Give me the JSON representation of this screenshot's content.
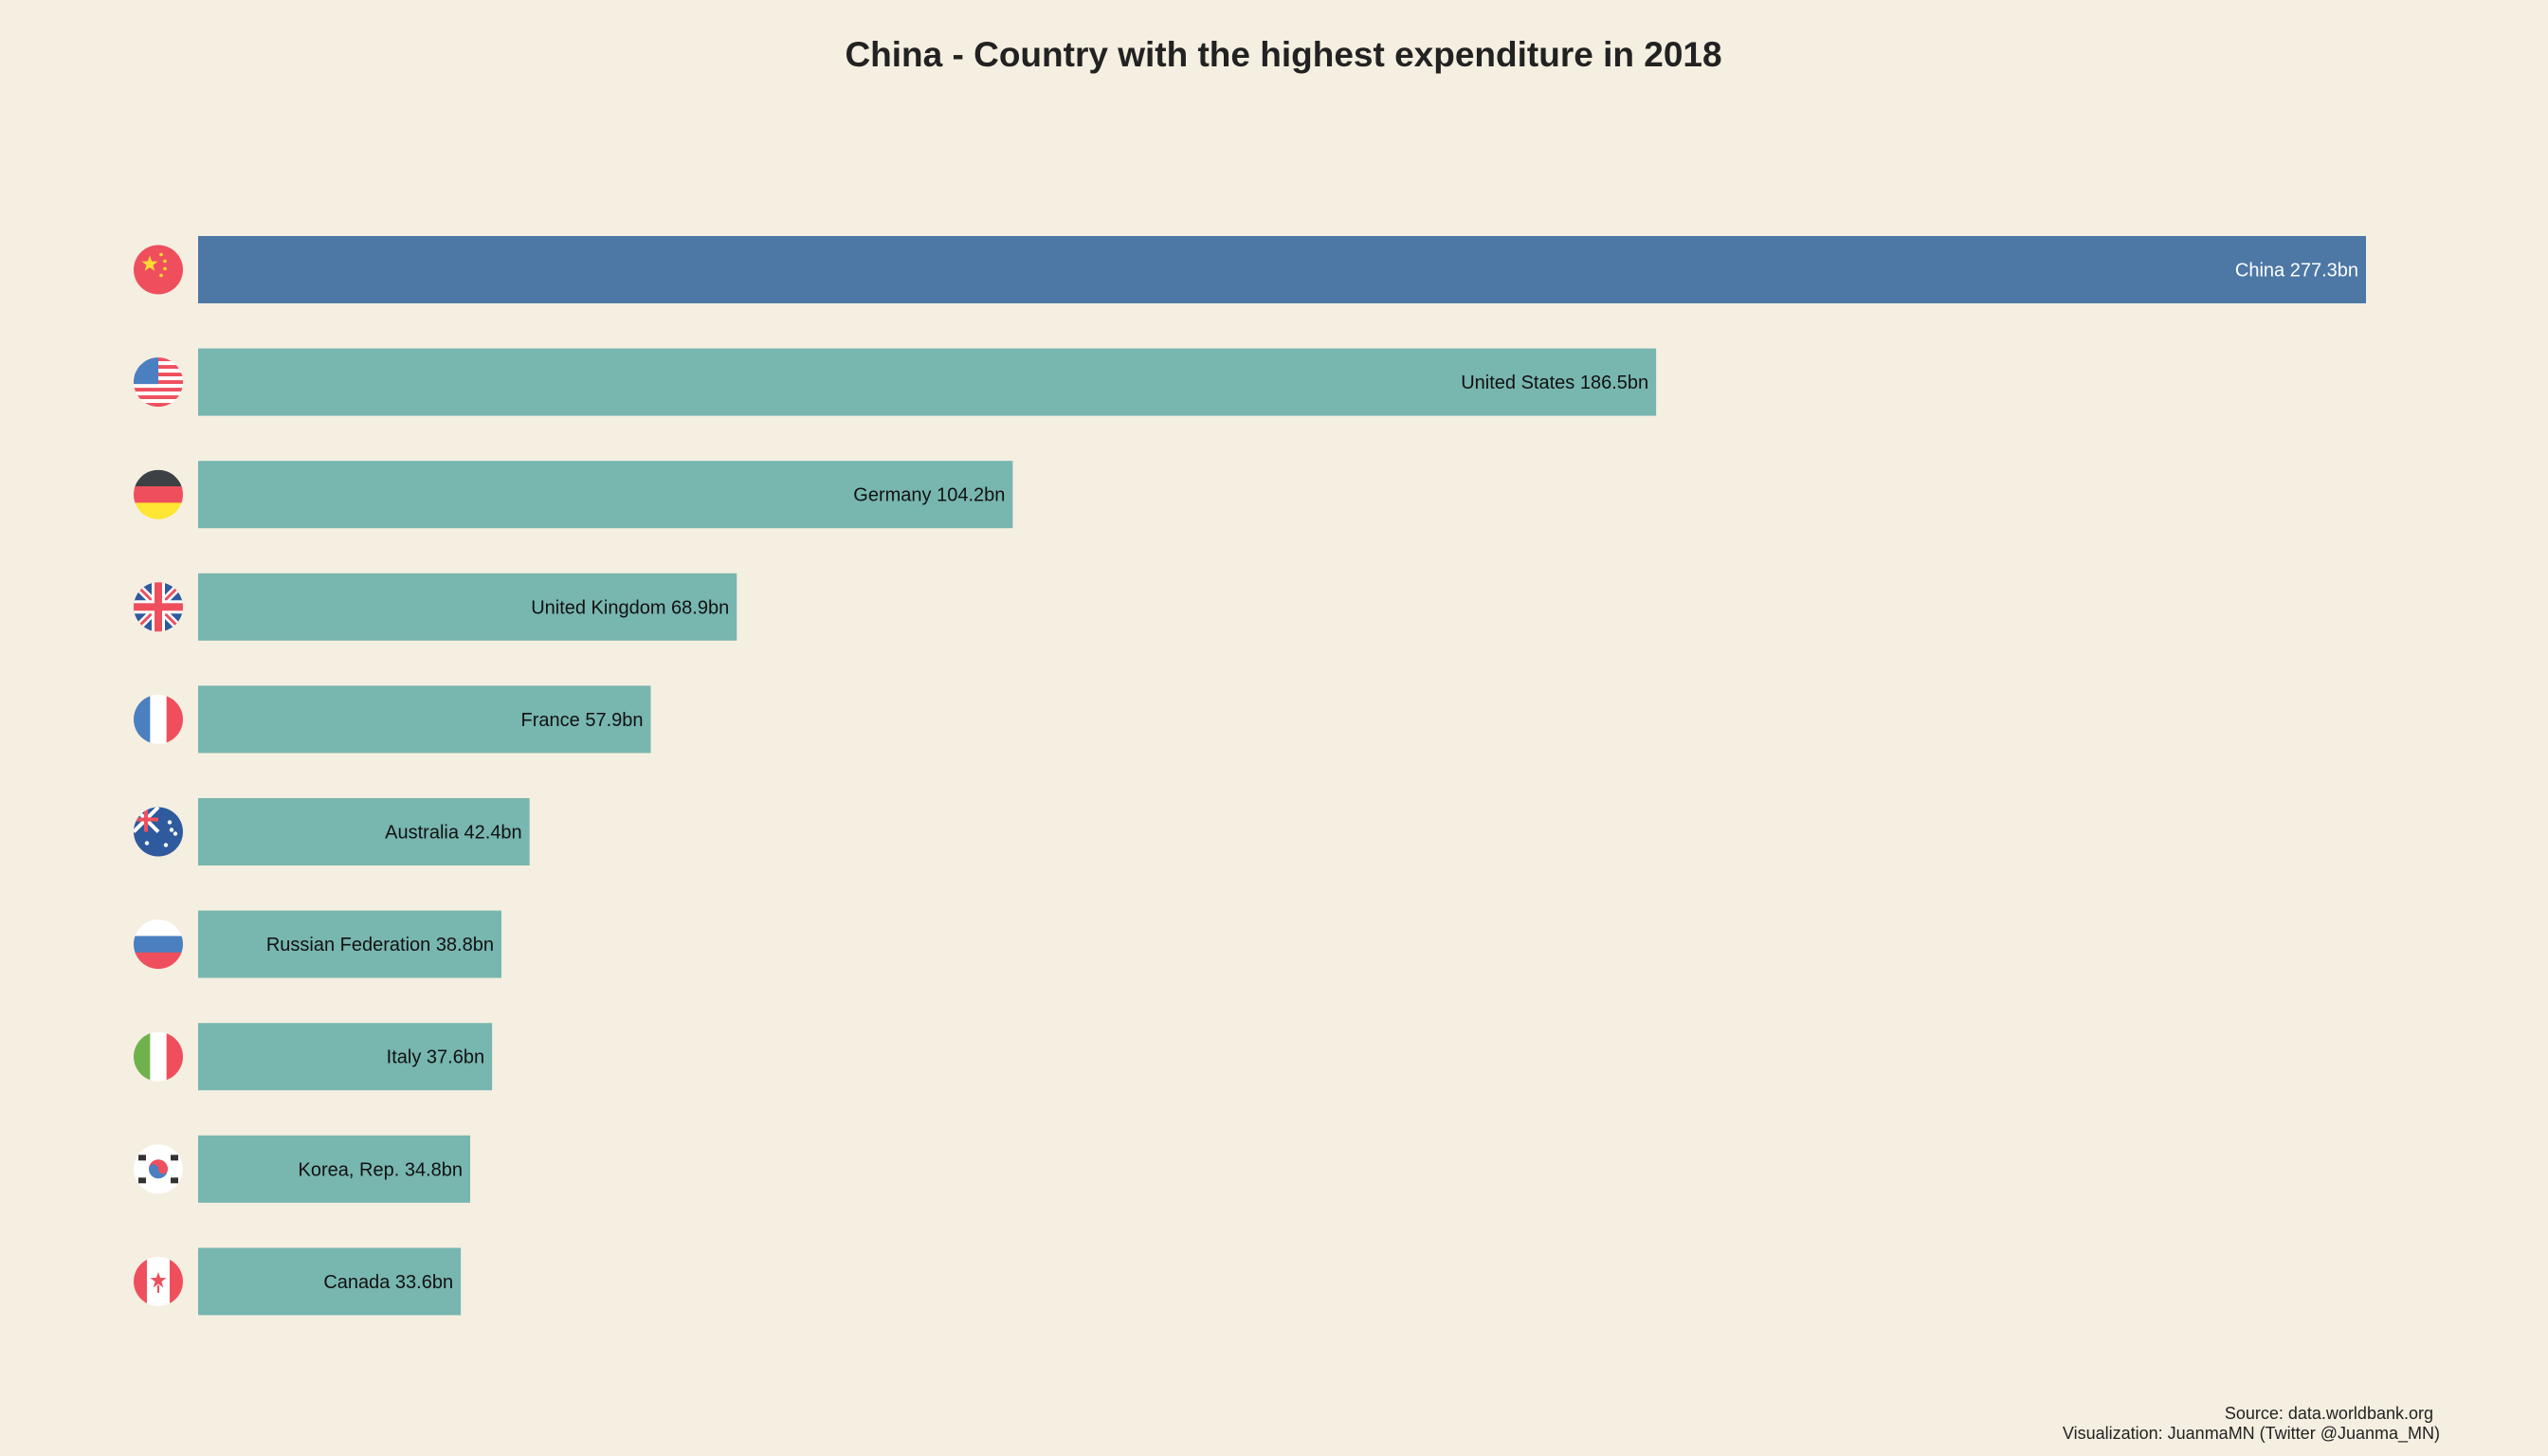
{
  "chart_data": {
    "type": "bar",
    "orientation": "horizontal",
    "title": "China - Country with the highest expenditure in 2018",
    "unit_suffix": "bn",
    "categories": [
      "China",
      "United States",
      "Germany",
      "United Kingdom",
      "France",
      "Australia",
      "Russian Federation",
      "Italy",
      "Korea, Rep.",
      "Canada"
    ],
    "values": [
      277.3,
      186.5,
      104.2,
      68.9,
      57.9,
      42.4,
      38.8,
      37.6,
      34.8,
      33.6
    ],
    "labels": [
      "China  277.3bn",
      "United States  186.5bn",
      "Germany  104.2bn",
      "United Kingdom  68.9bn",
      "France  57.9bn",
      "Australia  42.4bn",
      "Russian Federation  38.8bn",
      "Italy  37.6bn",
      "Korea, Rep.  34.8bn",
      "Canada  33.6bn"
    ],
    "flags": [
      "china-flag-icon",
      "usa-flag-icon",
      "germany-flag-icon",
      "uk-flag-icon",
      "france-flag-icon",
      "australia-flag-icon",
      "russia-flag-icon",
      "italy-flag-icon",
      "korea-flag-icon",
      "canada-flag-icon"
    ],
    "highlight_index": 0,
    "xlim": [
      0,
      277.3
    ],
    "grid": false,
    "colors": {
      "highlight": "#4d78a5",
      "bar": "#78b6b0",
      "background": "#f5efe1",
      "highlight_text": "#ffffff",
      "text": "#111111"
    }
  },
  "footer": {
    "source": "Source: data.worldbank.org",
    "credit": "Visualization: JuanmaMN (Twitter @Juanma_MN)"
  }
}
